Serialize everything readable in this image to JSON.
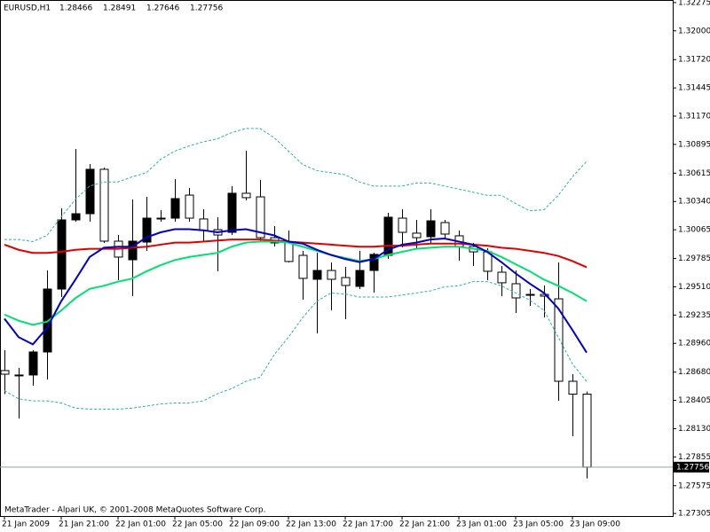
{
  "chart_data": {
    "type": "candlestick",
    "symbol": "EURUSD,H1",
    "footer": "MetaTrader - Alpari UK, © 2001-2008 MetaQuotes Software Corp.",
    "categories": [
      "21 Jan 2009",
      null,
      null,
      null,
      "21 Jan 21:00",
      null,
      null,
      null,
      "22 Jan 01:00",
      null,
      null,
      null,
      "22 Jan 05:00",
      null,
      null,
      null,
      "22 Jan 09:00",
      null,
      null,
      null,
      "22 Jan 13:00",
      null,
      null,
      null,
      "22 Jan 17:00",
      null,
      null,
      null,
      "22 Jan 21:00",
      null,
      null,
      null,
      "23 Jan 01:00",
      null,
      null,
      null,
      "23 Jan 05:00",
      null,
      null,
      null,
      "23 Jan 09:00",
      null
    ],
    "open": [
      1.28695,
      1.28652,
      1.28652,
      1.28876,
      1.29488,
      1.30161,
      1.30221,
      1.30653,
      1.29954,
      1.29773,
      1.29945,
      1.30178,
      1.30178,
      1.30402,
      1.3017,
      1.30066,
      1.3004,
      1.3042,
      1.30385,
      1.29988,
      1.29937,
      1.29816,
      1.29583,
      1.29669,
      1.296,
      1.29514,
      1.29669,
      1.29816,
      1.30178,
      1.30032,
      1.29997,
      1.30135,
      1.30006,
      1.29902,
      1.2985,
      1.29652,
      1.2954,
      1.29436,
      1.29436,
      1.29393,
      1.28591,
      1.28466
    ],
    "high": [
      1.28893,
      1.28721,
      1.28893,
      1.29669,
      1.30273,
      1.30851,
      1.30704,
      1.3067,
      1.30014,
      1.30359,
      1.30385,
      1.30256,
      1.30558,
      1.30471,
      1.30264,
      1.30187,
      1.30489,
      1.30834,
      1.30549,
      1.30101,
      1.30057,
      1.29859,
      1.29842,
      1.29747,
      1.29704,
      1.29859,
      1.29842,
      1.3023,
      1.30264,
      1.30161,
      1.30264,
      1.30161,
      1.30057,
      1.29937,
      1.29885,
      1.29712,
      1.29669,
      1.29488,
      1.29523,
      1.29747,
      1.2866,
      1.28491
    ],
    "low": [
      1.28466,
      1.28229,
      1.28548,
      1.28608,
      1.29411,
      1.30144,
      1.30144,
      1.29937,
      1.29574,
      1.29419,
      1.29859,
      1.30144,
      1.30144,
      1.30144,
      1.29954,
      1.29661,
      1.30014,
      1.30351,
      1.29954,
      1.29902,
      1.29747,
      1.29385,
      1.29057,
      1.29281,
      1.29195,
      1.29488,
      1.29454,
      1.29781,
      1.29894,
      1.29876,
      1.29937,
      1.29971,
      1.29764,
      1.29712,
      1.29574,
      1.29419,
      1.29255,
      1.29324,
      1.29212,
      1.28401,
      1.28056,
      1.27646
    ],
    "close": [
      1.2866,
      1.28652,
      1.28876,
      1.29488,
      1.30161,
      1.30221,
      1.30653,
      1.29954,
      1.29799,
      1.29954,
      1.30178,
      1.30178,
      1.30368,
      1.30178,
      1.30057,
      1.30014,
      1.3042,
      1.30377,
      1.29988,
      1.29937,
      1.29756,
      1.29592,
      1.29669,
      1.29583,
      1.29523,
      1.29669,
      1.29825,
      1.30187,
      1.3004,
      1.29988,
      1.30152,
      1.30023,
      1.29902,
      1.2985,
      1.29661,
      1.29549,
      1.29402,
      1.29436,
      1.29419,
      1.28591,
      1.28466,
      1.27756
    ],
    "up_color": "#000000",
    "down_color": "#ffffff",
    "lines": [
      {
        "color": "#2ab3a0",
        "dashed": true,
        "values": [
          1.2997,
          1.2997,
          1.2995,
          1.3001,
          1.3019,
          1.3036,
          1.3049,
          1.3053,
          1.3053,
          1.3058,
          1.3062,
          1.3075,
          1.3083,
          1.3088,
          1.3092,
          1.3095,
          1.3101,
          1.3105,
          1.3105,
          1.3096,
          1.3083,
          1.307,
          1.3064,
          1.3062,
          1.306,
          1.3053,
          1.3049,
          1.3049,
          1.3049,
          1.3052,
          1.3052,
          1.3049,
          1.3046,
          1.3043,
          1.304,
          1.304,
          1.3032,
          1.3025,
          1.3026,
          1.304,
          1.3058,
          1.3073
        ]
      },
      {
        "color": "#2ab3a0",
        "dashed": true,
        "values": [
          1.285,
          1.2842,
          1.284,
          1.284,
          1.2838,
          1.2833,
          1.2832,
          1.2832,
          1.2832,
          1.2833,
          1.2835,
          1.2837,
          1.2838,
          1.2838,
          1.284,
          1.2847,
          1.2852,
          1.2859,
          1.2863,
          1.2885,
          1.2902,
          1.2921,
          1.2937,
          1.2945,
          1.2944,
          1.2941,
          1.2941,
          1.2941,
          1.2943,
          1.2945,
          1.2947,
          1.2951,
          1.2952,
          1.2956,
          1.2956,
          1.2952,
          1.2945,
          1.2938,
          1.2928,
          1.2902,
          1.2876,
          1.2859
        ]
      },
      {
        "color": "#e00000",
        "dashed": false,
        "values": [
          1.2992,
          1.2987,
          1.2984,
          1.2984,
          1.2985,
          1.2987,
          1.2988,
          1.2988,
          1.2988,
          1.2989,
          1.299,
          1.2992,
          1.2994,
          1.2994,
          1.2995,
          1.2996,
          1.2997,
          1.2997,
          1.2997,
          1.2996,
          1.2995,
          1.2994,
          1.2993,
          1.2992,
          1.2991,
          1.299,
          1.299,
          1.2991,
          1.2991,
          1.2992,
          1.2993,
          1.2993,
          1.2993,
          1.2992,
          1.2991,
          1.2989,
          1.2988,
          1.2986,
          1.2984,
          1.2981,
          1.2976,
          1.297
        ]
      },
      {
        "color": "#00e070",
        "dashed": false,
        "values": [
          1.2924,
          1.2918,
          1.2914,
          1.2917,
          1.2928,
          1.294,
          1.2949,
          1.2952,
          1.2956,
          1.2959,
          1.2966,
          1.2972,
          1.2977,
          1.298,
          1.2982,
          1.2984,
          1.299,
          1.2994,
          1.2995,
          1.2995,
          1.2994,
          1.299,
          1.2986,
          1.2982,
          1.2979,
          1.2976,
          1.2978,
          1.2982,
          1.2985,
          1.2988,
          1.2989,
          1.299,
          1.299,
          1.2988,
          1.2986,
          1.298,
          1.2973,
          1.2966,
          1.2958,
          1.2952,
          1.2945,
          1.2937
        ]
      },
      {
        "color": "#0000c8",
        "dashed": false,
        "values": [
          1.292,
          1.2902,
          1.2895,
          1.2911,
          1.2937,
          1.2958,
          1.298,
          1.2989,
          1.299,
          1.299,
          1.2999,
          1.3004,
          1.3007,
          1.3007,
          1.3006,
          1.3004,
          1.3006,
          1.3007,
          1.3004,
          1.3001,
          1.2995,
          1.2993,
          1.2987,
          1.2982,
          1.2978,
          1.2975,
          1.2978,
          1.2987,
          1.2992,
          1.2994,
          1.2997,
          1.2998,
          1.2995,
          1.2992,
          1.2985,
          1.2975,
          1.2964,
          1.2954,
          1.2945,
          1.293,
          1.2909,
          1.2887
        ]
      }
    ],
    "ylim": [
      1.2728,
      1.323
    ],
    "yticks": [
      1.32275,
      {
        "value": 1.32,
        "label": "1.32000"
      },
      {
        "value": 1.3172,
        "label": "1.31720"
      },
      1.31445,
      {
        "value": 1.3117,
        "label": "1.31170"
      },
      1.30895,
      1.30615,
      {
        "value": 1.3034,
        "label": "1.30340"
      },
      1.30065,
      1.29785,
      {
        "value": 1.2951,
        "label": "1.29510"
      },
      1.29235,
      {
        "value": 1.2896,
        "label": "1.28960"
      },
      {
        "value": 1.2868,
        "label": "1.28680"
      },
      1.28405,
      {
        "value": 1.2813,
        "label": "1.28130"
      },
      1.27855,
      1.27575,
      1.27305
    ]
  }
}
